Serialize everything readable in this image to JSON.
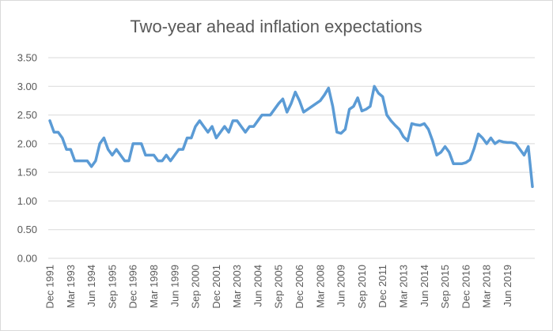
{
  "chart_data": {
    "type": "line",
    "title": "Two-year ahead inflation expectations",
    "xlabel": "",
    "ylabel": "",
    "ylim": [
      0,
      3.5
    ],
    "yticks": [
      "0.00",
      "0.50",
      "1.00",
      "1.50",
      "2.00",
      "2.50",
      "3.00",
      "3.50"
    ],
    "grid": true,
    "line_color": "#5b9bd5",
    "x_tick_labels": [
      "Dec 1991",
      "Mar 1993",
      "Jun 1994",
      "Sep 1995",
      "Dec 1996",
      "Mar 1998",
      "Jun 1999",
      "Sep 2000",
      "Dec 2001",
      "Mar 2003",
      "Jun 2004",
      "Sep 2005",
      "Dec 2006",
      "Mar 2008",
      "Jun 2009",
      "Sep 2010",
      "Dec 2011",
      "Mar 2013",
      "Jun 2014",
      "Sep 2015",
      "Dec 2016",
      "Mar 2018",
      "Jun 2019"
    ],
    "series": [
      {
        "name": "Two-year ahead inflation expectations",
        "values": [
          2.4,
          2.2,
          2.2,
          2.1,
          1.9,
          1.9,
          1.7,
          1.7,
          1.7,
          1.7,
          1.6,
          1.7,
          2.0,
          2.1,
          1.9,
          1.8,
          1.9,
          1.8,
          1.7,
          1.7,
          2.0,
          2.0,
          2.0,
          1.8,
          1.8,
          1.8,
          1.7,
          1.7,
          1.8,
          1.7,
          1.8,
          1.9,
          1.9,
          2.1,
          2.1,
          2.3,
          2.4,
          2.3,
          2.2,
          2.3,
          2.1,
          2.2,
          2.3,
          2.2,
          2.4,
          2.4,
          2.3,
          2.2,
          2.3,
          2.3,
          2.4,
          2.5,
          2.5,
          2.5,
          2.6,
          2.7,
          2.78,
          2.55,
          2.7,
          2.9,
          2.75,
          2.55,
          2.6,
          2.65,
          2.7,
          2.75,
          2.85,
          2.97,
          2.65,
          2.2,
          2.18,
          2.25,
          2.6,
          2.65,
          2.8,
          2.57,
          2.6,
          2.65,
          3.0,
          2.88,
          2.82,
          2.5,
          2.4,
          2.32,
          2.25,
          2.12,
          2.05,
          2.35,
          2.33,
          2.32,
          2.35,
          2.25,
          2.05,
          1.8,
          1.85,
          1.95,
          1.85,
          1.65,
          1.65,
          1.65,
          1.67,
          1.72,
          1.92,
          2.17,
          2.1,
          2.0,
          2.1,
          2.0,
          2.05,
          2.03,
          2.02,
          2.02,
          2.0,
          1.9,
          1.8,
          1.95,
          1.25
        ]
      }
    ]
  }
}
